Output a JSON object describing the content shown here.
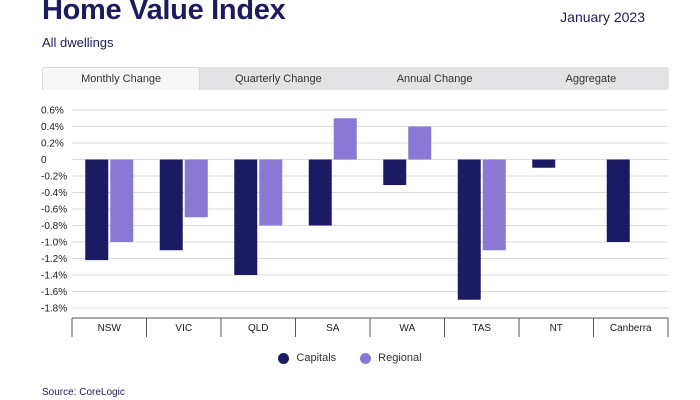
{
  "header": {
    "title": "Home Value Index",
    "date": "January 2023",
    "subtitle": "All dwellings"
  },
  "tabs": [
    {
      "label": "Monthly Change",
      "active": true
    },
    {
      "label": "Quarterly Change",
      "active": false
    },
    {
      "label": "Annual Change",
      "active": false
    },
    {
      "label": "Aggregate",
      "active": false
    }
  ],
  "colors": {
    "capitals": "#1b1a63",
    "regional": "#8b78d4",
    "title": "#1d1b5e",
    "grid": "#dcdcdc"
  },
  "chart_data": {
    "type": "bar",
    "categories": [
      "NSW",
      "VIC",
      "QLD",
      "SA",
      "WA",
      "TAS",
      "NT",
      "Canberra"
    ],
    "series": [
      {
        "name": "Capitals",
        "values": [
          -1.22,
          -1.1,
          -1.4,
          -0.8,
          -0.31,
          -1.7,
          -0.1,
          -1.0
        ]
      },
      {
        "name": "Regional",
        "values": [
          -1.0,
          -0.7,
          -0.8,
          0.5,
          0.4,
          -1.1,
          null,
          null
        ]
      }
    ],
    "y_ticks": [
      {
        "value": 0.6,
        "label": "0.6%"
      },
      {
        "value": 0.4,
        "label": "0.4%"
      },
      {
        "value": 0.2,
        "label": "0.2%"
      },
      {
        "value": 0.0,
        "label": "0"
      },
      {
        "value": -0.2,
        "label": "-0.2%"
      },
      {
        "value": -0.4,
        "label": "-0.4%"
      },
      {
        "value": -0.6,
        "label": "-0.6%"
      },
      {
        "value": -0.8,
        "label": "-0.8%"
      },
      {
        "value": -1.0,
        "label": "-1.0%"
      },
      {
        "value": -1.2,
        "label": "-1.2%"
      },
      {
        "value": -1.4,
        "label": "-1.4%"
      },
      {
        "value": -1.6,
        "label": "-1.6%"
      },
      {
        "value": -1.8,
        "label": "-1.8%"
      }
    ],
    "ylim": [
      -1.8,
      0.6
    ],
    "grid": true,
    "legend_position": "bottom"
  },
  "source": "Source: CoreLogic"
}
